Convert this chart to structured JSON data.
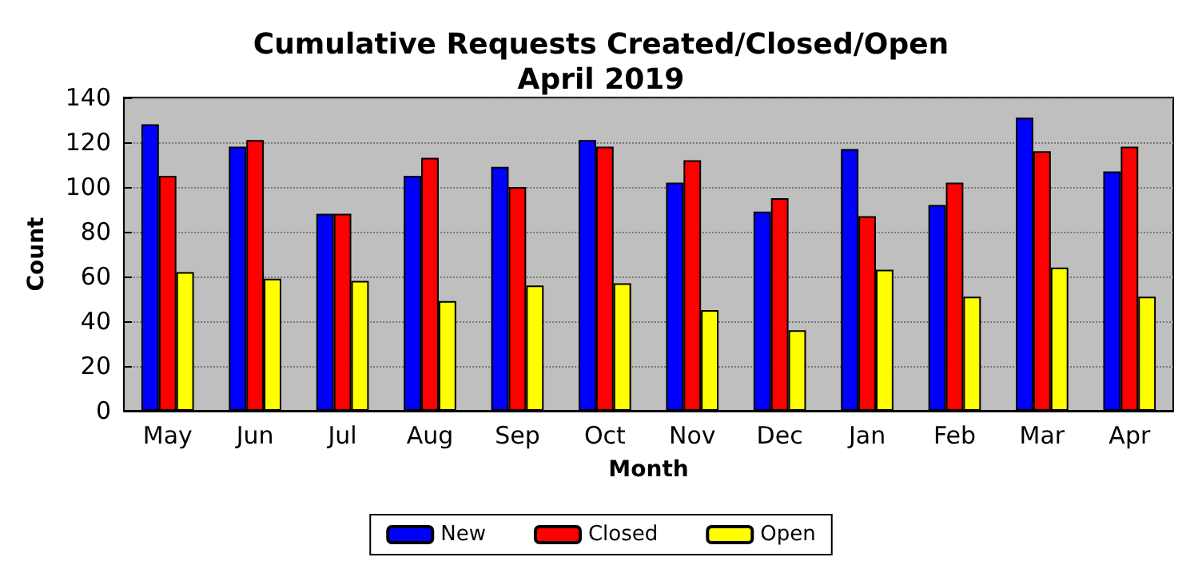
{
  "chart_data": {
    "type": "bar",
    "title": "Cumulative Requests Created/Closed/Open",
    "subtitle": "April 2019",
    "xlabel": "Month",
    "ylabel": "Count",
    "categories": [
      "May",
      "Jun",
      "Jul",
      "Aug",
      "Sep",
      "Oct",
      "Nov",
      "Dec",
      "Jan",
      "Feb",
      "Mar",
      "Apr"
    ],
    "series": [
      {
        "name": "New",
        "color": "#0000ff",
        "values": [
          128,
          118,
          88,
          105,
          109,
          121,
          102,
          89,
          117,
          92,
          131,
          107
        ]
      },
      {
        "name": "Closed",
        "color": "#ff0000",
        "values": [
          105,
          121,
          88,
          113,
          100,
          118,
          112,
          95,
          87,
          102,
          116,
          118
        ]
      },
      {
        "name": "Open",
        "color": "#ffff00",
        "values": [
          62,
          59,
          58,
          49,
          56,
          57,
          45,
          36,
          63,
          51,
          64,
          51
        ]
      }
    ],
    "ylim": [
      0,
      140
    ],
    "yticks": [
      0,
      20,
      40,
      60,
      80,
      100,
      120,
      140
    ],
    "grid": "y",
    "legend": "bottom"
  }
}
